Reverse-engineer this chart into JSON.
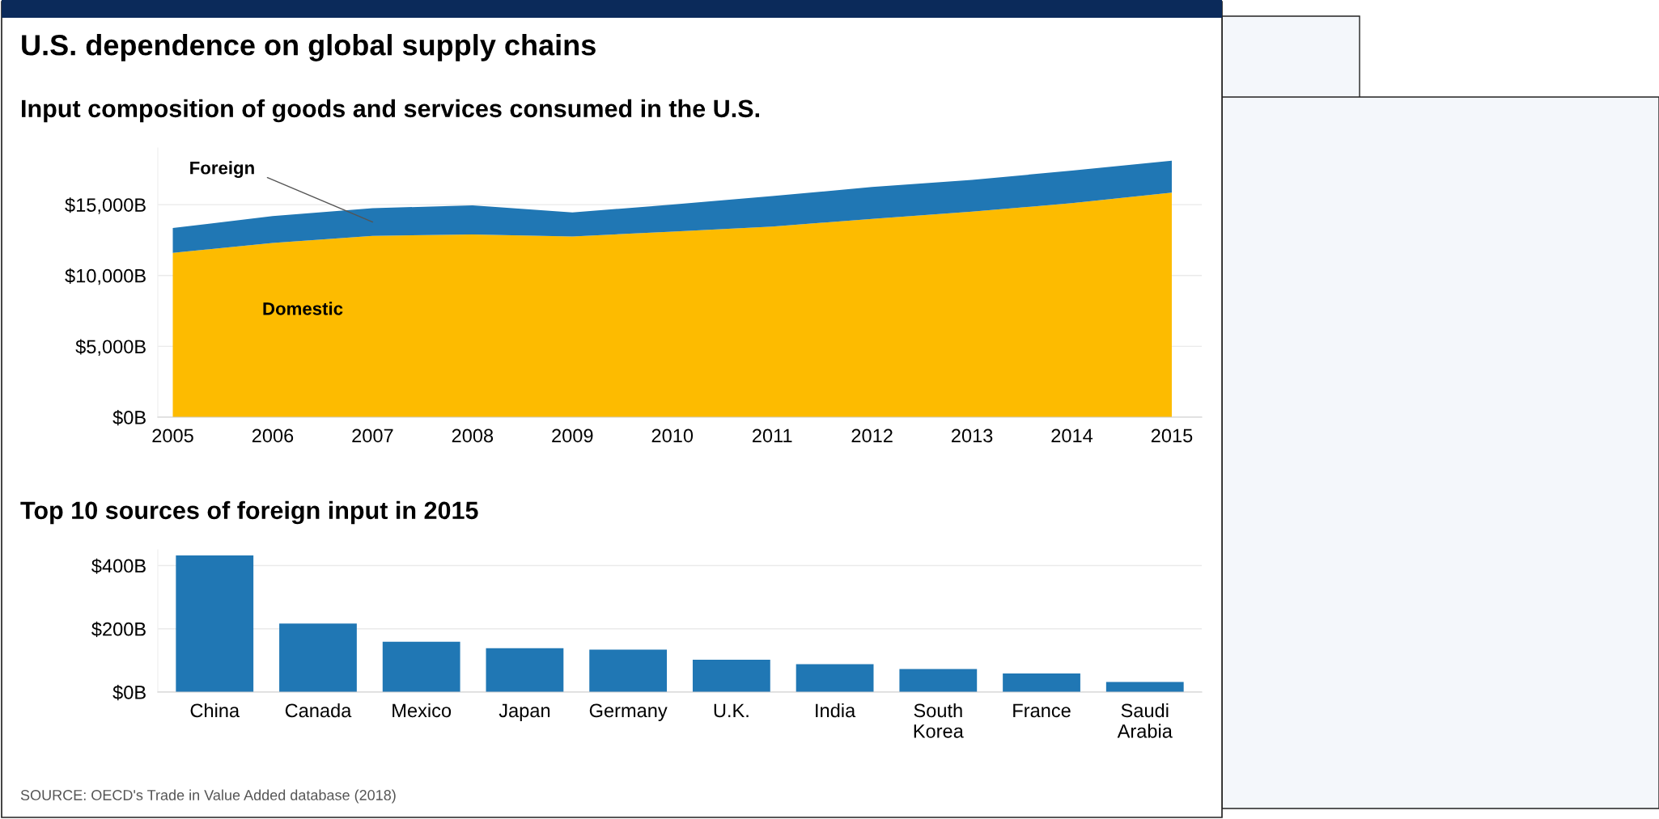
{
  "chart_data": [
    {
      "type": "area",
      "stacked": true,
      "title": "U.S. dependence on global supply chains",
      "subtitle": "Input composition of goods and services consumed in the U.S.",
      "x": [
        2005,
        2006,
        2007,
        2008,
        2009,
        2010,
        2011,
        2012,
        2013,
        2014,
        2015
      ],
      "series": [
        {
          "name": "Domestic",
          "color": "#fdbb00",
          "values": [
            11600,
            12300,
            12800,
            12900,
            12750,
            13100,
            13450,
            14000,
            14500,
            15100,
            15850
          ]
        },
        {
          "name": "Foreign",
          "color": "#2077b4",
          "values": [
            1750,
            1900,
            1950,
            2050,
            1700,
            1900,
            2150,
            2250,
            2250,
            2300,
            2250
          ]
        }
      ],
      "xlim": [
        2004.85,
        2015.3
      ],
      "xticks": [
        2005,
        2006,
        2007,
        2008,
        2009,
        2010,
        2011,
        2012,
        2013,
        2014,
        2015
      ],
      "yticks": [
        {
          "value": 0,
          "label": "$0B"
        },
        {
          "value": 5000,
          "label": "$5,000B"
        },
        {
          "value": 10000,
          "label": "$10,000B"
        },
        {
          "value": 15000,
          "label": "$15,000B"
        }
      ],
      "ylim": [
        0,
        19000
      ],
      "grid": "y",
      "legend": false
    },
    {
      "type": "bar",
      "title": "Top 10 sources of foreign input in 2015",
      "categories": [
        "China",
        "Canada",
        "Mexico",
        "Japan",
        "Germany",
        "U.K.",
        "India",
        "South\nKorea",
        "France",
        "Saudi\nArabia"
      ],
      "values": [
        432,
        217,
        159,
        139,
        134,
        102,
        88,
        73,
        59,
        32
      ],
      "color": "#2077b4",
      "ylim": [
        0,
        450
      ],
      "yticks": [
        {
          "value": 0,
          "label": "$0B"
        },
        {
          "value": 200,
          "label": "$200B"
        },
        {
          "value": 400,
          "label": "$400B"
        }
      ],
      "grid": "y",
      "legend": false,
      "annotations": [
        "SOURCE: OECD's Trade in Value Added database (2018)"
      ]
    }
  ]
}
